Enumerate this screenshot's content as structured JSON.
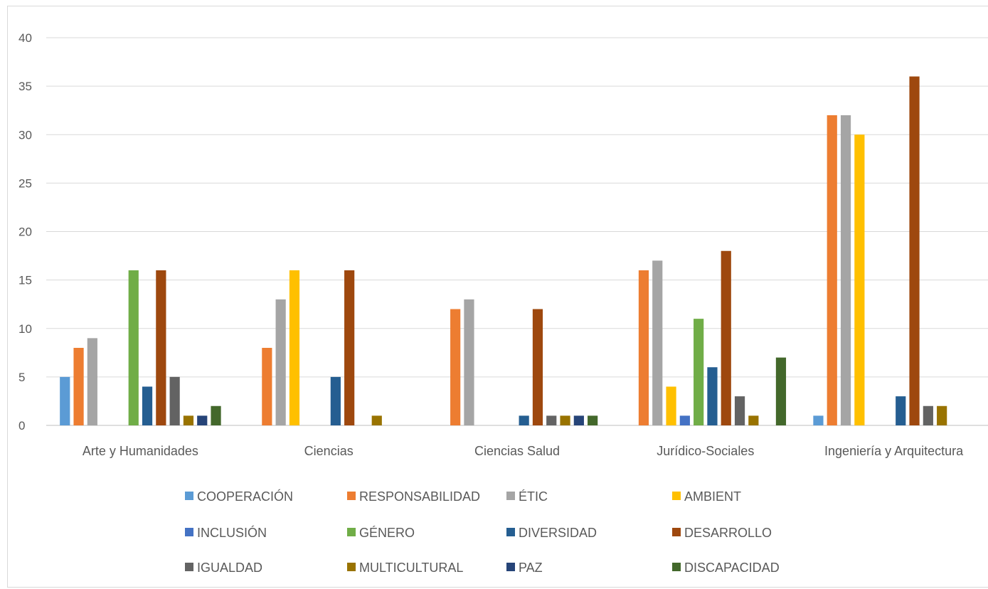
{
  "chart_data": {
    "type": "bar",
    "title": "",
    "xlabel": "",
    "ylabel": "",
    "ylim": [
      0,
      40
    ],
    "yticks": [
      0,
      5,
      10,
      15,
      20,
      25,
      30,
      35,
      40
    ],
    "grid": true,
    "legend_position": "bottom",
    "categories": [
      "Arte y Humanidades",
      "Ciencias",
      "Ciencias Salud",
      "Jurídico-Sociales",
      "Ingeniería y Arquitectura"
    ],
    "series": [
      {
        "name": "COOPERACIÓN",
        "color": "#5b9bd5",
        "values": [
          5,
          0,
          0,
          0,
          1
        ]
      },
      {
        "name": "RESPONSABILIDAD",
        "color": "#ed7d31",
        "values": [
          8,
          8,
          12,
          16,
          32
        ]
      },
      {
        "name": "ÉTIC",
        "color": "#a5a5a5",
        "values": [
          9,
          13,
          13,
          17,
          32
        ]
      },
      {
        "name": "AMBIENT",
        "color": "#ffc000",
        "values": [
          0,
          16,
          0,
          4,
          30
        ]
      },
      {
        "name": "INCLUSIÓN",
        "color": "#4472c4",
        "values": [
          0,
          0,
          0,
          1,
          0
        ]
      },
      {
        "name": "GÉNERO",
        "color": "#70ad47",
        "values": [
          16,
          0,
          0,
          11,
          0
        ]
      },
      {
        "name": "DIVERSIDAD",
        "color": "#255e91",
        "values": [
          4,
          5,
          1,
          6,
          3
        ]
      },
      {
        "name": "DESARROLLO",
        "color": "#9e480e",
        "values": [
          16,
          16,
          12,
          18,
          36
        ]
      },
      {
        "name": "IGUALDAD",
        "color": "#636363",
        "values": [
          5,
          0,
          1,
          3,
          2
        ]
      },
      {
        "name": "MULTICULTURAL",
        "color": "#997300",
        "values": [
          1,
          1,
          1,
          1,
          2
        ]
      },
      {
        "name": "PAZ",
        "color": "#264478",
        "values": [
          1,
          0,
          1,
          0,
          0
        ]
      },
      {
        "name": "DISCAPACIDAD",
        "color": "#43682b",
        "values": [
          2,
          0,
          1,
          7,
          0
        ]
      }
    ]
  }
}
